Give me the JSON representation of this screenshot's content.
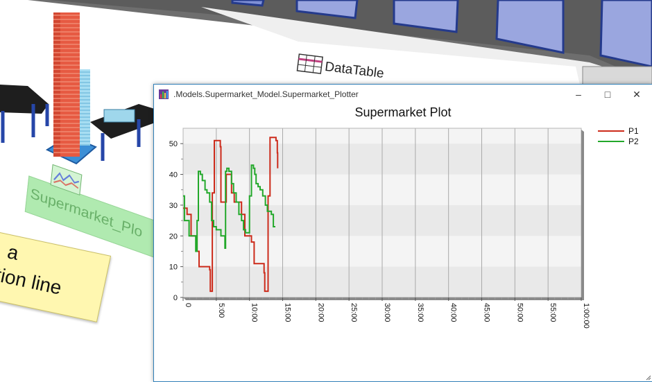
{
  "scene": {
    "label_text": "Supermarket_Plo",
    "note_line1": "a",
    "note_line2": "tion line",
    "datatable_label": "DataTable"
  },
  "window": {
    "title": ".Models.Supermarket_Model.Supermarket_Plotter",
    "minimize_glyph": "–",
    "maximize_glyph": "□",
    "close_glyph": "✕",
    "app_icon": "chart-app-icon"
  },
  "chart_data": {
    "type": "line",
    "title": "Supermarket Plot",
    "xlabel": "",
    "ylabel": "",
    "xlim": [
      0,
      60
    ],
    "ylim": [
      0,
      55
    ],
    "x_ticks": [
      0,
      5,
      10,
      15,
      20,
      25,
      30,
      35,
      40,
      45,
      50,
      55,
      60
    ],
    "x_tick_labels": [
      "0",
      "5:00",
      "10:00",
      "15:00",
      "20:00",
      "25:00",
      "30:00",
      "35:00",
      "40:00",
      "45:00",
      "50:00",
      "55:00",
      "1:00:00"
    ],
    "y_ticks": [
      0,
      10,
      20,
      30,
      40,
      50
    ],
    "y_tick_labels": [
      "0",
      "10",
      "20",
      "30",
      "40",
      "50"
    ],
    "grid": true,
    "legend": "top-right",
    "series": [
      {
        "name": "P1",
        "color": "#cc2a1a",
        "x": [
          0,
          0.3,
          0.6,
          0.8,
          1.2,
          1.5,
          1.8,
          2.1,
          2.4,
          2.7,
          3.2,
          3.5,
          4.0,
          4.1,
          4.3,
          4.4,
          4.7,
          5.0,
          5.5,
          5.6,
          5.7,
          6.2,
          6.5,
          7.0,
          7.3,
          7.7,
          8.0,
          8.4,
          8.8,
          9.3,
          9.7,
          10.0,
          10.3,
          10.7,
          11.0,
          11.3,
          11.7,
          12.0,
          12.2,
          12.3,
          12.5,
          12.8,
          13.1,
          13.3,
          13.5,
          13.8,
          14.0,
          14.2,
          14.25
        ],
        "y": [
          29,
          29,
          27,
          27,
          20,
          20,
          20,
          15,
          10,
          10,
          10,
          10,
          9,
          2,
          2,
          34,
          51,
          51,
          51,
          49,
          31,
          31,
          40,
          40,
          34,
          31,
          31,
          31,
          27,
          20,
          20,
          20,
          18,
          11,
          11,
          11,
          11,
          11,
          8,
          2,
          2,
          33,
          52,
          52,
          52,
          52,
          51,
          47,
          42
        ]
      },
      {
        "name": "P2",
        "color": "#22a82a",
        "x": [
          0,
          0.2,
          0.5,
          0.9,
          1.3,
          1.6,
          1.9,
          2.1,
          2.3,
          2.6,
          2.9,
          3.3,
          3.6,
          4.0,
          4.3,
          4.6,
          5.0,
          5.3,
          5.7,
          6.0,
          6.3,
          6.4,
          6.6,
          6.9,
          7.3,
          7.6,
          8.0,
          8.4,
          8.8,
          9.1,
          9.4,
          9.7,
          10.0,
          10.3,
          10.6,
          10.8,
          11.0,
          11.3,
          11.6,
          12.0,
          12.4,
          12.7,
          13.0,
          13.3,
          13.6,
          13.9
        ],
        "y": [
          33,
          25,
          25,
          20,
          20,
          20,
          15,
          25,
          41,
          40,
          38,
          35,
          34,
          31,
          25,
          23,
          22,
          22,
          20,
          20,
          16,
          41,
          42,
          41,
          37,
          34,
          31,
          27,
          25,
          22,
          21,
          21,
          33,
          43,
          42,
          40,
          37,
          36,
          35,
          33,
          30,
          28,
          28,
          27,
          23,
          23
        ]
      }
    ]
  }
}
